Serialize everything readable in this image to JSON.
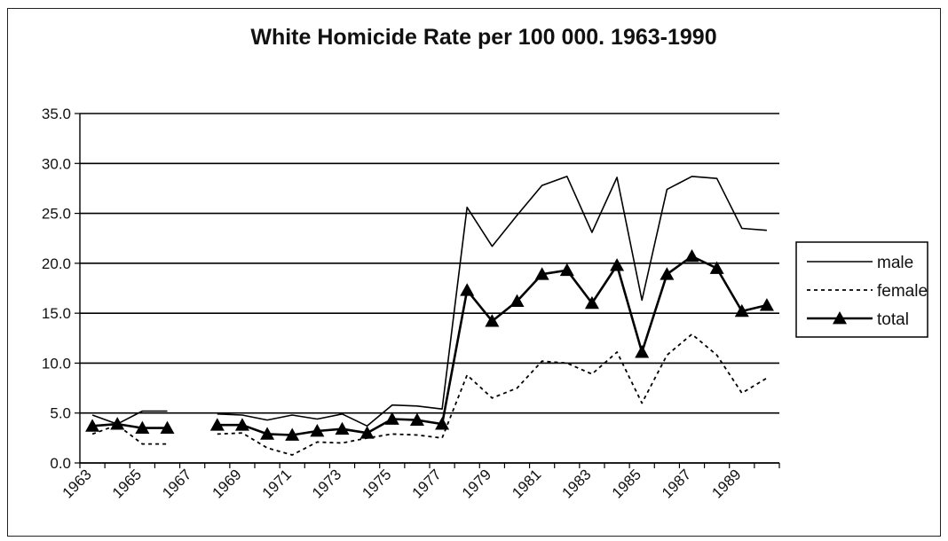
{
  "chart_data": {
    "type": "line",
    "title": "White Homicide Rate per 100 000. 1963-1990",
    "xlabel": "",
    "ylabel": "",
    "ylim": [
      0,
      35
    ],
    "yticks": [
      "0.0",
      "5.0",
      "10.0",
      "15.0",
      "20.0",
      "25.0",
      "30.0",
      "35.0"
    ],
    "xticks": [
      "1963",
      "1965",
      "1967",
      "1969",
      "1971",
      "1973",
      "1975",
      "1977",
      "1979",
      "1981",
      "1983",
      "1985",
      "1987",
      "1989"
    ],
    "grid": "horizontal",
    "legend_position": "right",
    "x": [
      1963,
      1964,
      1965,
      1966,
      1967,
      1968,
      1969,
      1970,
      1971,
      1972,
      1973,
      1974,
      1975,
      1976,
      1977,
      1978,
      1979,
      1980,
      1981,
      1982,
      1983,
      1984,
      1985,
      1986,
      1987,
      1988,
      1989,
      1990
    ],
    "series": [
      {
        "name": "male",
        "style": "solid",
        "color": "#000000",
        "values": [
          4.8,
          3.9,
          5.2,
          5.2,
          null,
          4.9,
          4.8,
          4.3,
          4.8,
          4.4,
          4.9,
          3.7,
          5.8,
          5.7,
          5.4,
          25.6,
          21.7,
          24.8,
          27.8,
          28.7,
          23.1,
          28.6,
          16.3,
          27.4,
          28.7,
          28.5,
          23.5,
          23.3
        ]
      },
      {
        "name": "female",
        "style": "dotted",
        "color": "#000000",
        "values": [
          2.9,
          3.8,
          1.9,
          1.9,
          null,
          2.9,
          3.0,
          1.5,
          0.8,
          2.1,
          2.0,
          2.5,
          2.9,
          2.8,
          2.5,
          8.8,
          6.5,
          7.5,
          10.2,
          10.0,
          8.9,
          11.1,
          6.0,
          10.8,
          12.9,
          10.8,
          7.0,
          8.5
        ]
      },
      {
        "name": "total",
        "style": "solid-triangle",
        "color": "#000000",
        "values": [
          3.7,
          3.9,
          3.5,
          3.5,
          null,
          3.8,
          3.8,
          2.9,
          2.8,
          3.2,
          3.4,
          3.0,
          4.4,
          4.3,
          3.9,
          17.3,
          14.2,
          16.2,
          18.9,
          19.3,
          16.0,
          19.8,
          11.1,
          18.9,
          20.7,
          19.5,
          15.2,
          15.8
        ]
      }
    ]
  }
}
